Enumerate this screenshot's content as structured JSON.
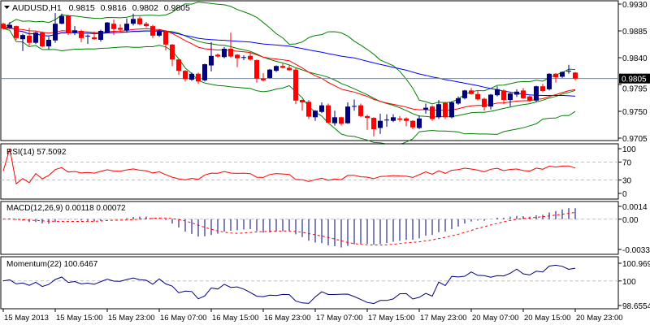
{
  "header": {
    "symbol": "AUDUSD,H1",
    "open": "0.9815",
    "high": "0.9816",
    "low": "0.9802",
    "close": "0.9805"
  },
  "colors": {
    "bull": "#00007f",
    "bear": "#ff0000",
    "bands": "#008000",
    "ma_fast": "#ff0000",
    "ma_slow": "#0000ff",
    "grid": "#c0c0c0",
    "price_line": "#778899"
  },
  "chart_data": [
    {
      "type": "candlestick",
      "title": "AUDUSD,H1",
      "current_price_label": "0.9805",
      "ylim": [
        0.9705,
        0.993
      ],
      "y_ticks": [
        "0.9930",
        "0.9885",
        "0.9840",
        "0.9795",
        "0.9750",
        "0.9705"
      ],
      "x_ticks": [
        "15 May 2013",
        "15 May 15:00",
        "15 May 23:00",
        "16 May 07:00",
        "16 May 15:00",
        "16 May 23:00",
        "17 May 07:00",
        "17 May 15:00",
        "17 May 23:00",
        "20 May 07:00",
        "20 May 15:00",
        "20 May 23:00"
      ],
      "x_tick_every_bars": 8,
      "ohlc": [
        [
          0.9897,
          0.9899,
          0.9887,
          0.9889
        ],
        [
          0.989,
          0.99,
          0.9888,
          0.9895
        ],
        [
          0.9893,
          0.9894,
          0.987,
          0.9873
        ],
        [
          0.9871,
          0.988,
          0.9851,
          0.9878
        ],
        [
          0.9877,
          0.989,
          0.986,
          0.9865
        ],
        [
          0.9865,
          0.9884,
          0.9863,
          0.9882
        ],
        [
          0.9882,
          0.9884,
          0.9857,
          0.9859
        ],
        [
          0.9859,
          0.9875,
          0.9854,
          0.987
        ],
        [
          0.9869,
          0.9915,
          0.9865,
          0.9897
        ],
        [
          0.9897,
          0.9914,
          0.9896,
          0.991
        ],
        [
          0.9911,
          0.9912,
          0.9878,
          0.9881
        ],
        [
          0.9882,
          0.9893,
          0.9878,
          0.9886
        ],
        [
          0.9885,
          0.9887,
          0.9866,
          0.9873
        ],
        [
          0.9876,
          0.9879,
          0.9863,
          0.9877
        ],
        [
          0.9874,
          0.9884,
          0.987,
          0.9871
        ],
        [
          0.987,
          0.9887,
          0.9867,
          0.9885
        ],
        [
          0.9882,
          0.99,
          0.9881,
          0.9899
        ],
        [
          0.9897,
          0.9904,
          0.9878,
          0.9888
        ],
        [
          0.989,
          0.9896,
          0.9882,
          0.9887
        ],
        [
          0.9886,
          0.9906,
          0.9882,
          0.9897
        ],
        [
          0.9897,
          0.9914,
          0.9894,
          0.9905
        ],
        [
          0.9906,
          0.9909,
          0.9894,
          0.9896
        ],
        [
          0.9897,
          0.99,
          0.9891,
          0.9893
        ],
        [
          0.9893,
          0.9895,
          0.9873,
          0.9877
        ],
        [
          0.9877,
          0.9887,
          0.9875,
          0.9884
        ],
        [
          0.9885,
          0.9886,
          0.9852,
          0.9862
        ],
        [
          0.9862,
          0.9863,
          0.9826,
          0.9837
        ],
        [
          0.9837,
          0.9838,
          0.9811,
          0.9818
        ],
        [
          0.9818,
          0.9819,
          0.98,
          0.9804
        ],
        [
          0.9803,
          0.9815,
          0.9801,
          0.9813
        ],
        [
          0.9813,
          0.9815,
          0.9796,
          0.98
        ],
        [
          0.9802,
          0.983,
          0.98,
          0.9829
        ],
        [
          0.9827,
          0.9866,
          0.9817,
          0.9843
        ],
        [
          0.9845,
          0.9847,
          0.984,
          0.9842
        ],
        [
          0.9841,
          0.9858,
          0.9839,
          0.9855
        ],
        [
          0.9855,
          0.9882,
          0.984,
          0.9842
        ],
        [
          0.9845,
          0.9846,
          0.9824,
          0.9839
        ],
        [
          0.984,
          0.9844,
          0.9836,
          0.9841
        ],
        [
          0.9843,
          0.9849,
          0.9835,
          0.9837
        ],
        [
          0.9836,
          0.9837,
          0.9798,
          0.9805
        ],
        [
          0.9805,
          0.9814,
          0.98,
          0.9802
        ],
        [
          0.9806,
          0.9821,
          0.9805,
          0.982
        ],
        [
          0.9818,
          0.9827,
          0.9816,
          0.9826
        ],
        [
          0.9826,
          0.983,
          0.9822,
          0.9823
        ],
        [
          0.9823,
          0.9827,
          0.9818,
          0.9819
        ],
        [
          0.982,
          0.9823,
          0.9762,
          0.9768
        ],
        [
          0.9769,
          0.977,
          0.9751,
          0.9765
        ],
        [
          0.9766,
          0.9769,
          0.9737,
          0.9741
        ],
        [
          0.974,
          0.9752,
          0.9734,
          0.9751
        ],
        [
          0.9749,
          0.9765,
          0.9747,
          0.976
        ],
        [
          0.976,
          0.9763,
          0.973,
          0.9731
        ],
        [
          0.973,
          0.9751,
          0.9726,
          0.974
        ],
        [
          0.974,
          0.9741,
          0.9726,
          0.9729
        ],
        [
          0.973,
          0.9765,
          0.9729,
          0.9758
        ],
        [
          0.9758,
          0.977,
          0.9751,
          0.9759
        ],
        [
          0.976,
          0.9763,
          0.974,
          0.9742
        ],
        [
          0.9742,
          0.9744,
          0.9719,
          0.9739
        ],
        [
          0.9739,
          0.974,
          0.9708,
          0.972
        ],
        [
          0.9722,
          0.9746,
          0.9712,
          0.9734
        ],
        [
          0.9735,
          0.9745,
          0.9724,
          0.9736
        ],
        [
          0.9734,
          0.9745,
          0.9732,
          0.974
        ],
        [
          0.9738,
          0.9742,
          0.9733,
          0.9736
        ],
        [
          0.9738,
          0.974,
          0.9725,
          0.9734
        ],
        [
          0.9734,
          0.9735,
          0.972,
          0.9723
        ],
        [
          0.9722,
          0.9743,
          0.972,
          0.9738
        ],
        [
          0.9753,
          0.9763,
          0.9746,
          0.9756
        ],
        [
          0.9758,
          0.976,
          0.9734,
          0.9737
        ],
        [
          0.974,
          0.9769,
          0.9737,
          0.9762
        ],
        [
          0.9764,
          0.9766,
          0.9737,
          0.974
        ],
        [
          0.974,
          0.9767,
          0.9738,
          0.9765
        ],
        [
          0.9763,
          0.9775,
          0.9761,
          0.9772
        ],
        [
          0.9772,
          0.9786,
          0.977,
          0.9785
        ],
        [
          0.9785,
          0.9789,
          0.9778,
          0.9779
        ],
        [
          0.9779,
          0.9784,
          0.9768,
          0.977
        ],
        [
          0.9771,
          0.9773,
          0.9751,
          0.9757
        ],
        [
          0.9758,
          0.9779,
          0.9753,
          0.9778
        ],
        [
          0.9777,
          0.9792,
          0.9775,
          0.9787
        ],
        [
          0.9785,
          0.9787,
          0.9762,
          0.9769
        ],
        [
          0.9769,
          0.9781,
          0.9758,
          0.978
        ],
        [
          0.9778,
          0.9787,
          0.9774,
          0.9783
        ],
        [
          0.9785,
          0.9789,
          0.9771,
          0.9772
        ],
        [
          0.9775,
          0.9777,
          0.9766,
          0.9768
        ],
        [
          0.9768,
          0.9793,
          0.9766,
          0.9792
        ],
        [
          0.9792,
          0.9796,
          0.9782,
          0.9784
        ],
        [
          0.9787,
          0.9814,
          0.9785,
          0.9813
        ],
        [
          0.9813,
          0.9814,
          0.9798,
          0.9807
        ],
        [
          0.9808,
          0.9817,
          0.9806,
          0.9816
        ],
        [
          0.9817,
          0.9828,
          0.9813,
          0.9818
        ],
        [
          0.9815,
          0.9816,
          0.9802,
          0.9805
        ]
      ],
      "overlays": [
        "Bollinger Bands(20,2)",
        "Moving Average (fast)",
        "Moving Average (slow)"
      ]
    },
    {
      "type": "line",
      "title": "RSI(14) 57.5092",
      "ylim": [
        0,
        100
      ],
      "y_ticks": [
        "100",
        "70",
        "30",
        "0"
      ],
      "levels": [
        70,
        30
      ]
    },
    {
      "type": "bar",
      "title": "MACD(12,26,9) 0.00118 0.00072",
      "ylim": [
        -0.00331,
        0.0014
      ],
      "y_ticks": [
        "0.0014",
        "0.00",
        "-0.00331"
      ]
    },
    {
      "type": "line",
      "title": "Momentum(22) 100.6467",
      "ylim": [
        98.6554,
        100.9691
      ],
      "y_ticks": [
        "100.9691",
        "100",
        "98.6554"
      ],
      "levels": [
        100
      ]
    }
  ]
}
